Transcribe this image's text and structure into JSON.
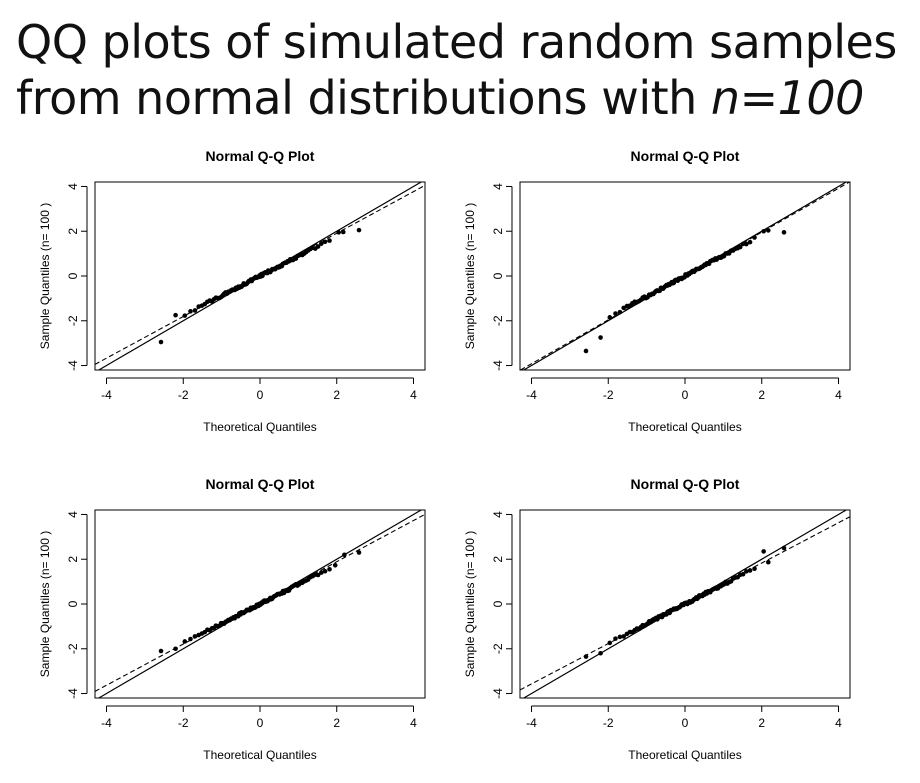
{
  "slide": {
    "title_line1": "QQ plots of simulated random samples",
    "title_line2_prefix": "from normal distributions with ",
    "title_line2_emph": "n=100"
  },
  "chart_data": [
    {
      "type": "scatter",
      "title": "Normal Q-Q Plot",
      "xlabel": "Theoretical Quantiles",
      "ylabel": "Sample Quantiles (n= 100 )",
      "xlim": [
        -4.3,
        4.3
      ],
      "ylim": [
        -4.2,
        4.2
      ],
      "xticks": [
        -4,
        -2,
        0,
        2,
        4
      ],
      "yticks": [
        -4,
        -2,
        0,
        2,
        4
      ],
      "solid_line": {
        "intercept": 0,
        "slope": 1
      },
      "dashed_line": {
        "intercept": 0.05,
        "slope": 0.93
      },
      "sample": {
        "mean": 0.0,
        "sd": 0.88
      },
      "notable_points": [
        {
          "x": -2.58,
          "y": -2.95
        },
        {
          "x": -2.2,
          "y": -1.75
        },
        {
          "x": 2.05,
          "y": 1.95
        },
        {
          "x": 2.58,
          "y": 2.05
        }
      ]
    },
    {
      "type": "scatter",
      "title": "Normal Q-Q Plot",
      "xlabel": "Theoretical Quantiles",
      "ylabel": "Sample Quantiles (n= 100 )",
      "xlim": [
        -4.3,
        4.3
      ],
      "ylim": [
        -4.2,
        4.2
      ],
      "xticks": [
        -4,
        -2,
        0,
        2,
        4
      ],
      "yticks": [
        -4,
        -2,
        0,
        2,
        4
      ],
      "solid_line": {
        "intercept": 0,
        "slope": 1
      },
      "dashed_line": {
        "intercept": 0.0,
        "slope": 0.98
      },
      "sample": {
        "mean": 0.0,
        "sd": 0.92
      },
      "notable_points": [
        {
          "x": -2.58,
          "y": -3.35
        },
        {
          "x": -2.2,
          "y": -2.75
        },
        {
          "x": 2.05,
          "y": 2.0
        },
        {
          "x": 2.58,
          "y": 1.95
        }
      ]
    },
    {
      "type": "scatter",
      "title": "Normal Q-Q Plot",
      "xlabel": "Theoretical Quantiles",
      "ylabel": "Sample Quantiles (n= 100 )",
      "xlim": [
        -4.3,
        4.3
      ],
      "ylim": [
        -4.2,
        4.2
      ],
      "xticks": [
        -4,
        -2,
        0,
        2,
        4
      ],
      "yticks": [
        -4,
        -2,
        0,
        2,
        4
      ],
      "solid_line": {
        "intercept": 0,
        "slope": 1
      },
      "dashed_line": {
        "intercept": 0.05,
        "slope": 0.92
      },
      "sample": {
        "mean": 0.0,
        "sd": 0.88
      },
      "notable_points": [
        {
          "x": -2.58,
          "y": -2.1
        },
        {
          "x": -2.2,
          "y": -2.0
        },
        {
          "x": 2.2,
          "y": 2.2
        },
        {
          "x": 2.58,
          "y": 2.3
        }
      ]
    },
    {
      "type": "scatter",
      "title": "Normal Q-Q Plot",
      "xlabel": "Theoretical Quantiles",
      "ylabel": "Sample Quantiles (n= 100 )",
      "xlim": [
        -4.3,
        4.3
      ],
      "ylim": [
        -4.2,
        4.2
      ],
      "xticks": [
        -4,
        -2,
        0,
        2,
        4
      ],
      "yticks": [
        -4,
        -2,
        0,
        2,
        4
      ],
      "solid_line": {
        "intercept": 0,
        "slope": 1
      },
      "dashed_line": {
        "intercept": 0.03,
        "slope": 0.9
      },
      "sample": {
        "mean": 0.0,
        "sd": 0.88
      },
      "notable_points": [
        {
          "x": -2.58,
          "y": -2.35
        },
        {
          "x": -2.2,
          "y": -2.2
        },
        {
          "x": 2.05,
          "y": 2.35
        },
        {
          "x": 2.58,
          "y": 2.5
        }
      ]
    }
  ]
}
